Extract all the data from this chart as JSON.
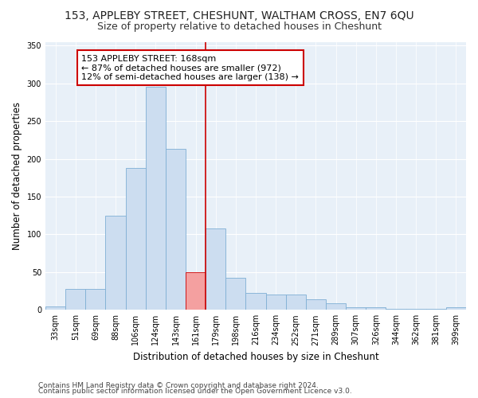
{
  "title": "153, APPLEBY STREET, CHESHUNT, WALTHAM CROSS, EN7 6QU",
  "subtitle": "Size of property relative to detached houses in Cheshunt",
  "xlabel": "Distribution of detached houses by size in Cheshunt",
  "ylabel": "Number of detached properties",
  "categories": [
    "33sqm",
    "51sqm",
    "69sqm",
    "88sqm",
    "106sqm",
    "124sqm",
    "143sqm",
    "161sqm",
    "179sqm",
    "198sqm",
    "216sqm",
    "234sqm",
    "252sqm",
    "271sqm",
    "289sqm",
    "307sqm",
    "326sqm",
    "344sqm",
    "362sqm",
    "381sqm",
    "399sqm"
  ],
  "values": [
    5,
    28,
    28,
    125,
    188,
    295,
    213,
    50,
    108,
    42,
    22,
    20,
    20,
    14,
    9,
    4,
    4,
    1,
    1,
    1,
    3
  ],
  "bar_color": "#ccddf0",
  "bar_edge_color": "#7fafd4",
  "highlight_bar_index": 7,
  "highlight_bar_color": "#f4a0a0",
  "highlight_bar_edge_color": "#cc0000",
  "vline_x": 7.5,
  "vline_color": "#cc0000",
  "annotation_text": "153 APPLEBY STREET: 168sqm\n← 87% of detached houses are smaller (972)\n12% of semi-detached houses are larger (138) →",
  "annotation_box_facecolor": "#ffffff",
  "annotation_box_edgecolor": "#cc0000",
  "ylim": [
    0,
    355
  ],
  "yticks": [
    0,
    50,
    100,
    150,
    200,
    250,
    300,
    350
  ],
  "footer1": "Contains HM Land Registry data © Crown copyright and database right 2024.",
  "footer2": "Contains public sector information licensed under the Open Government Licence v3.0.",
  "plot_bg_color": "#e8f0f8",
  "title_fontsize": 10,
  "subtitle_fontsize": 9,
  "axis_label_fontsize": 8.5,
  "tick_fontsize": 7,
  "annotation_fontsize": 8,
  "footer_fontsize": 6.5
}
